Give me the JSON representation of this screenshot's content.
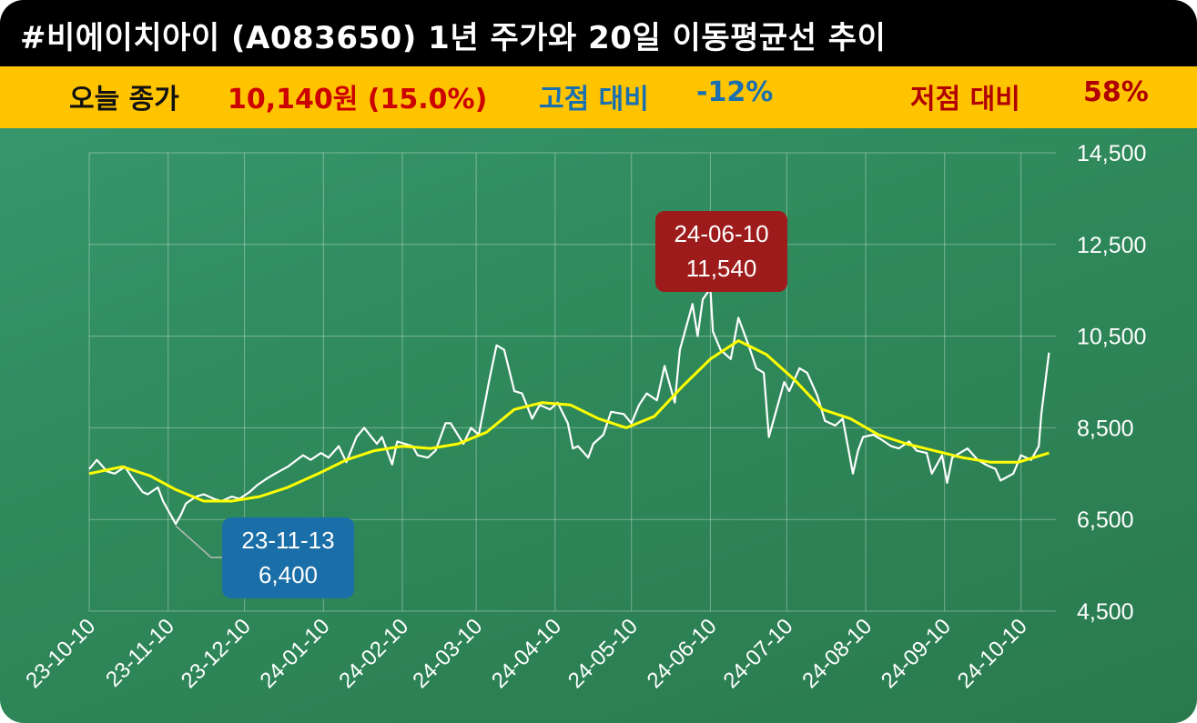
{
  "header": {
    "title": "#비에이치아이 (A083650) 1년 주가와 20일 이동평균선 추이"
  },
  "stats": {
    "close_label": "오늘 종가",
    "close_value": "10,140원 (15.0%)",
    "high_label": "고점 대비",
    "high_value": "-12%",
    "low_label": "저점 대비",
    "low_value": "58%"
  },
  "colors": {
    "title_bg": "#000000",
    "stats_bg": "#ffc400",
    "close_value": "#cc0000",
    "high_text": "#1a6fb0",
    "low_text": "#b00000",
    "price_line": "#ffffff",
    "ma_line": "#ffff00",
    "high_callout": "#9e1b1b",
    "low_callout": "#1a6fa8"
  },
  "chart_data": {
    "type": "line",
    "title": "",
    "xlabel": "",
    "ylabel": "",
    "ylim": [
      4500,
      14500
    ],
    "yticks": [
      4500,
      6500,
      8500,
      10500,
      12500,
      14500
    ],
    "ytick_labels": [
      "4,500",
      "6,500",
      "8,500",
      "10,500",
      "12,500",
      "14,500"
    ],
    "xticks": [
      "2023-10-10",
      "2023-11-10",
      "2023-12-10",
      "2024-01-10",
      "2024-02-10",
      "2024-03-10",
      "2024-04-10",
      "2024-05-10",
      "2024-06-10",
      "2024-07-10",
      "2024-08-10",
      "2024-09-10",
      "2024-10-10"
    ],
    "xtick_labels": [
      "23-10-10",
      "23-11-10",
      "23-12-10",
      "24-01-10",
      "24-02-10",
      "24-03-10",
      "24-04-10",
      "24-05-10",
      "24-06-10",
      "24-07-10",
      "24-08-10",
      "24-09-10",
      "24-10-10"
    ],
    "grid": true,
    "series": [
      {
        "values": [
          [
            "2023-10-10",
            7600
          ],
          [
            "2023-10-13",
            7800
          ],
          [
            "2023-10-17",
            7550
          ],
          [
            "2023-10-20",
            7500
          ],
          [
            "2023-10-24",
            7650
          ],
          [
            "2023-10-27",
            7400
          ],
          [
            "2023-10-31",
            7100
          ],
          [
            "2023-11-02",
            7050
          ],
          [
            "2023-11-06",
            7200
          ],
          [
            "2023-11-08",
            6900
          ],
          [
            "2023-11-13",
            6400
          ],
          [
            "2023-11-15",
            6600
          ],
          [
            "2023-11-17",
            6850
          ],
          [
            "2023-11-21",
            7000
          ],
          [
            "2023-11-24",
            7050
          ],
          [
            "2023-11-28",
            6950
          ],
          [
            "2023-12-01",
            6900
          ],
          [
            "2023-12-05",
            7000
          ],
          [
            "2023-12-08",
            6950
          ],
          [
            "2023-12-12",
            7100
          ],
          [
            "2023-12-15",
            7250
          ],
          [
            "2023-12-19",
            7400
          ],
          [
            "2023-12-22",
            7500
          ],
          [
            "2023-12-27",
            7650
          ],
          [
            "2024-01-02",
            7900
          ],
          [
            "2024-01-05",
            7800
          ],
          [
            "2024-01-09",
            7950
          ],
          [
            "2024-01-12",
            7850
          ],
          [
            "2024-01-16",
            8100
          ],
          [
            "2024-01-19",
            7750
          ],
          [
            "2024-01-23",
            8300
          ],
          [
            "2024-01-26",
            8500
          ],
          [
            "2024-01-31",
            8150
          ],
          [
            "2024-02-02",
            8300
          ],
          [
            "2024-02-06",
            7700
          ],
          [
            "2024-02-08",
            8200
          ],
          [
            "2024-02-14",
            8100
          ],
          [
            "2024-02-16",
            7900
          ],
          [
            "2024-02-20",
            7850
          ],
          [
            "2024-02-23",
            8000
          ],
          [
            "2024-02-27",
            8600
          ],
          [
            "2024-02-29",
            8600
          ],
          [
            "2024-03-05",
            8150
          ],
          [
            "2024-03-08",
            8500
          ],
          [
            "2024-03-11",
            8350
          ],
          [
            "2024-03-14",
            9200
          ],
          [
            "2024-03-15",
            9500
          ],
          [
            "2024-03-18",
            10300
          ],
          [
            "2024-03-21",
            10200
          ],
          [
            "2024-03-25",
            9300
          ],
          [
            "2024-03-28",
            9250
          ],
          [
            "2024-04-01",
            8700
          ],
          [
            "2024-04-04",
            9000
          ],
          [
            "2024-04-08",
            8900
          ],
          [
            "2024-04-11",
            9050
          ],
          [
            "2024-04-15",
            8600
          ],
          [
            "2024-04-17",
            8050
          ],
          [
            "2024-04-19",
            8100
          ],
          [
            "2024-04-23",
            7850
          ],
          [
            "2024-04-25",
            8150
          ],
          [
            "2024-04-29",
            8350
          ],
          [
            "2024-05-02",
            8850
          ],
          [
            "2024-05-07",
            8800
          ],
          [
            "2024-05-10",
            8600
          ],
          [
            "2024-05-13",
            9000
          ],
          [
            "2024-05-16",
            9250
          ],
          [
            "2024-05-20",
            9100
          ],
          [
            "2024-05-23",
            9850
          ],
          [
            "2024-05-27",
            9050
          ],
          [
            "2024-05-29",
            10200
          ],
          [
            "2024-06-03",
            11200
          ],
          [
            "2024-06-05",
            10500
          ],
          [
            "2024-06-07",
            11300
          ],
          [
            "2024-06-10",
            11540
          ],
          [
            "2024-06-11",
            10600
          ],
          [
            "2024-06-14",
            10200
          ],
          [
            "2024-06-18",
            10000
          ],
          [
            "2024-06-21",
            10900
          ],
          [
            "2024-06-25",
            10300
          ],
          [
            "2024-06-28",
            9800
          ],
          [
            "2024-07-01",
            9700
          ],
          [
            "2024-07-03",
            8300
          ],
          [
            "2024-07-05",
            8700
          ],
          [
            "2024-07-09",
            9500
          ],
          [
            "2024-07-11",
            9300
          ],
          [
            "2024-07-15",
            9800
          ],
          [
            "2024-07-18",
            9700
          ],
          [
            "2024-07-22",
            9200
          ],
          [
            "2024-07-25",
            8650
          ],
          [
            "2024-07-29",
            8550
          ],
          [
            "2024-08-01",
            8700
          ],
          [
            "2024-08-05",
            7500
          ],
          [
            "2024-08-07",
            8000
          ],
          [
            "2024-08-09",
            8300
          ],
          [
            "2024-08-13",
            8350
          ],
          [
            "2024-08-16",
            8250
          ],
          [
            "2024-08-20",
            8100
          ],
          [
            "2024-08-23",
            8050
          ],
          [
            "2024-08-27",
            8200
          ],
          [
            "2024-08-30",
            8000
          ],
          [
            "2024-09-03",
            7950
          ],
          [
            "2024-09-05",
            7500
          ],
          [
            "2024-09-09",
            7900
          ],
          [
            "2024-09-11",
            7300
          ],
          [
            "2024-09-13",
            7850
          ],
          [
            "2024-09-19",
            8050
          ],
          [
            "2024-09-23",
            7800
          ],
          [
            "2024-09-26",
            7700
          ],
          [
            "2024-09-30",
            7600
          ],
          [
            "2024-10-02",
            7350
          ],
          [
            "2024-10-07",
            7500
          ],
          [
            "2024-10-10",
            7900
          ],
          [
            "2024-10-14",
            7800
          ],
          [
            "2024-10-17",
            8100
          ],
          [
            "2024-10-18",
            8800
          ],
          [
            "2024-10-21",
            10140
          ]
        ]
      },
      {
        "values": [
          [
            "2023-10-10",
            7500
          ],
          [
            "2023-10-23",
            7650
          ],
          [
            "2023-11-03",
            7450
          ],
          [
            "2023-11-13",
            7150
          ],
          [
            "2023-11-24",
            6900
          ],
          [
            "2023-12-05",
            6900
          ],
          [
            "2023-12-16",
            7000
          ],
          [
            "2023-12-27",
            7200
          ],
          [
            "2024-01-08",
            7500
          ],
          [
            "2024-01-19",
            7800
          ],
          [
            "2024-01-30",
            8000
          ],
          [
            "2024-02-10",
            8100
          ],
          [
            "2024-02-21",
            8050
          ],
          [
            "2024-03-03",
            8150
          ],
          [
            "2024-03-14",
            8400
          ],
          [
            "2024-03-25",
            8900
          ],
          [
            "2024-04-05",
            9050
          ],
          [
            "2024-04-16",
            9000
          ],
          [
            "2024-04-27",
            8700
          ],
          [
            "2024-05-08",
            8500
          ],
          [
            "2024-05-19",
            8750
          ],
          [
            "2024-05-30",
            9400
          ],
          [
            "2024-06-10",
            10000
          ],
          [
            "2024-06-21",
            10400
          ],
          [
            "2024-07-02",
            10100
          ],
          [
            "2024-07-13",
            9550
          ],
          [
            "2024-07-24",
            8900
          ],
          [
            "2024-08-04",
            8700
          ],
          [
            "2024-08-15",
            8350
          ],
          [
            "2024-08-26",
            8150
          ],
          [
            "2024-09-06",
            8000
          ],
          [
            "2024-09-17",
            7850
          ],
          [
            "2024-09-28",
            7750
          ],
          [
            "2024-10-09",
            7750
          ],
          [
            "2024-10-21",
            7950
          ]
        ]
      }
    ],
    "annotations": [
      {
        "date_label": "24-06-10",
        "value_label": "11,540",
        "x": "2024-06-10",
        "y": 11540,
        "kind": "high"
      },
      {
        "date_label": "23-11-13",
        "value_label": "6,400",
        "x": "2023-11-13",
        "y": 6400,
        "kind": "low"
      }
    ]
  }
}
